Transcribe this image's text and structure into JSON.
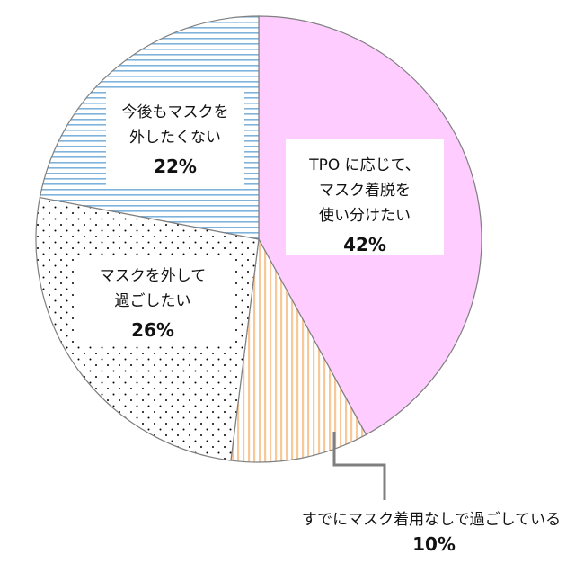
{
  "chart_data": {
    "type": "pie",
    "title": "",
    "series": [
      {
        "values": [
          42,
          10,
          26,
          22
        ],
        "slices": [
          {
            "label_lines": [
              "TPO に応じて、",
              "マスク着脱を",
              "使い分けたい"
            ],
            "percent_label": "42%",
            "value": 42,
            "color": "#ffccff",
            "pattern": "solid"
          },
          {
            "label_lines": [
              "すでにマスク着用なしで過ごしている"
            ],
            "percent_label": "10%",
            "value": 10,
            "color": "#f6c89a",
            "pattern": "vertical-stripes"
          },
          {
            "label_lines": [
              "マスクを外して",
              "過ごしたい"
            ],
            "percent_label": "26%",
            "value": 26,
            "color": "#000000",
            "pattern": "dots"
          },
          {
            "label_lines": [
              "今後もマスクを",
              "外したくない"
            ],
            "percent_label": "22%",
            "value": 22,
            "color": "#7fb3dc",
            "pattern": "horizontal-stripes"
          }
        ]
      }
    ],
    "start_angle": "12 o'clock",
    "direction": "clockwise",
    "legend": "none"
  }
}
